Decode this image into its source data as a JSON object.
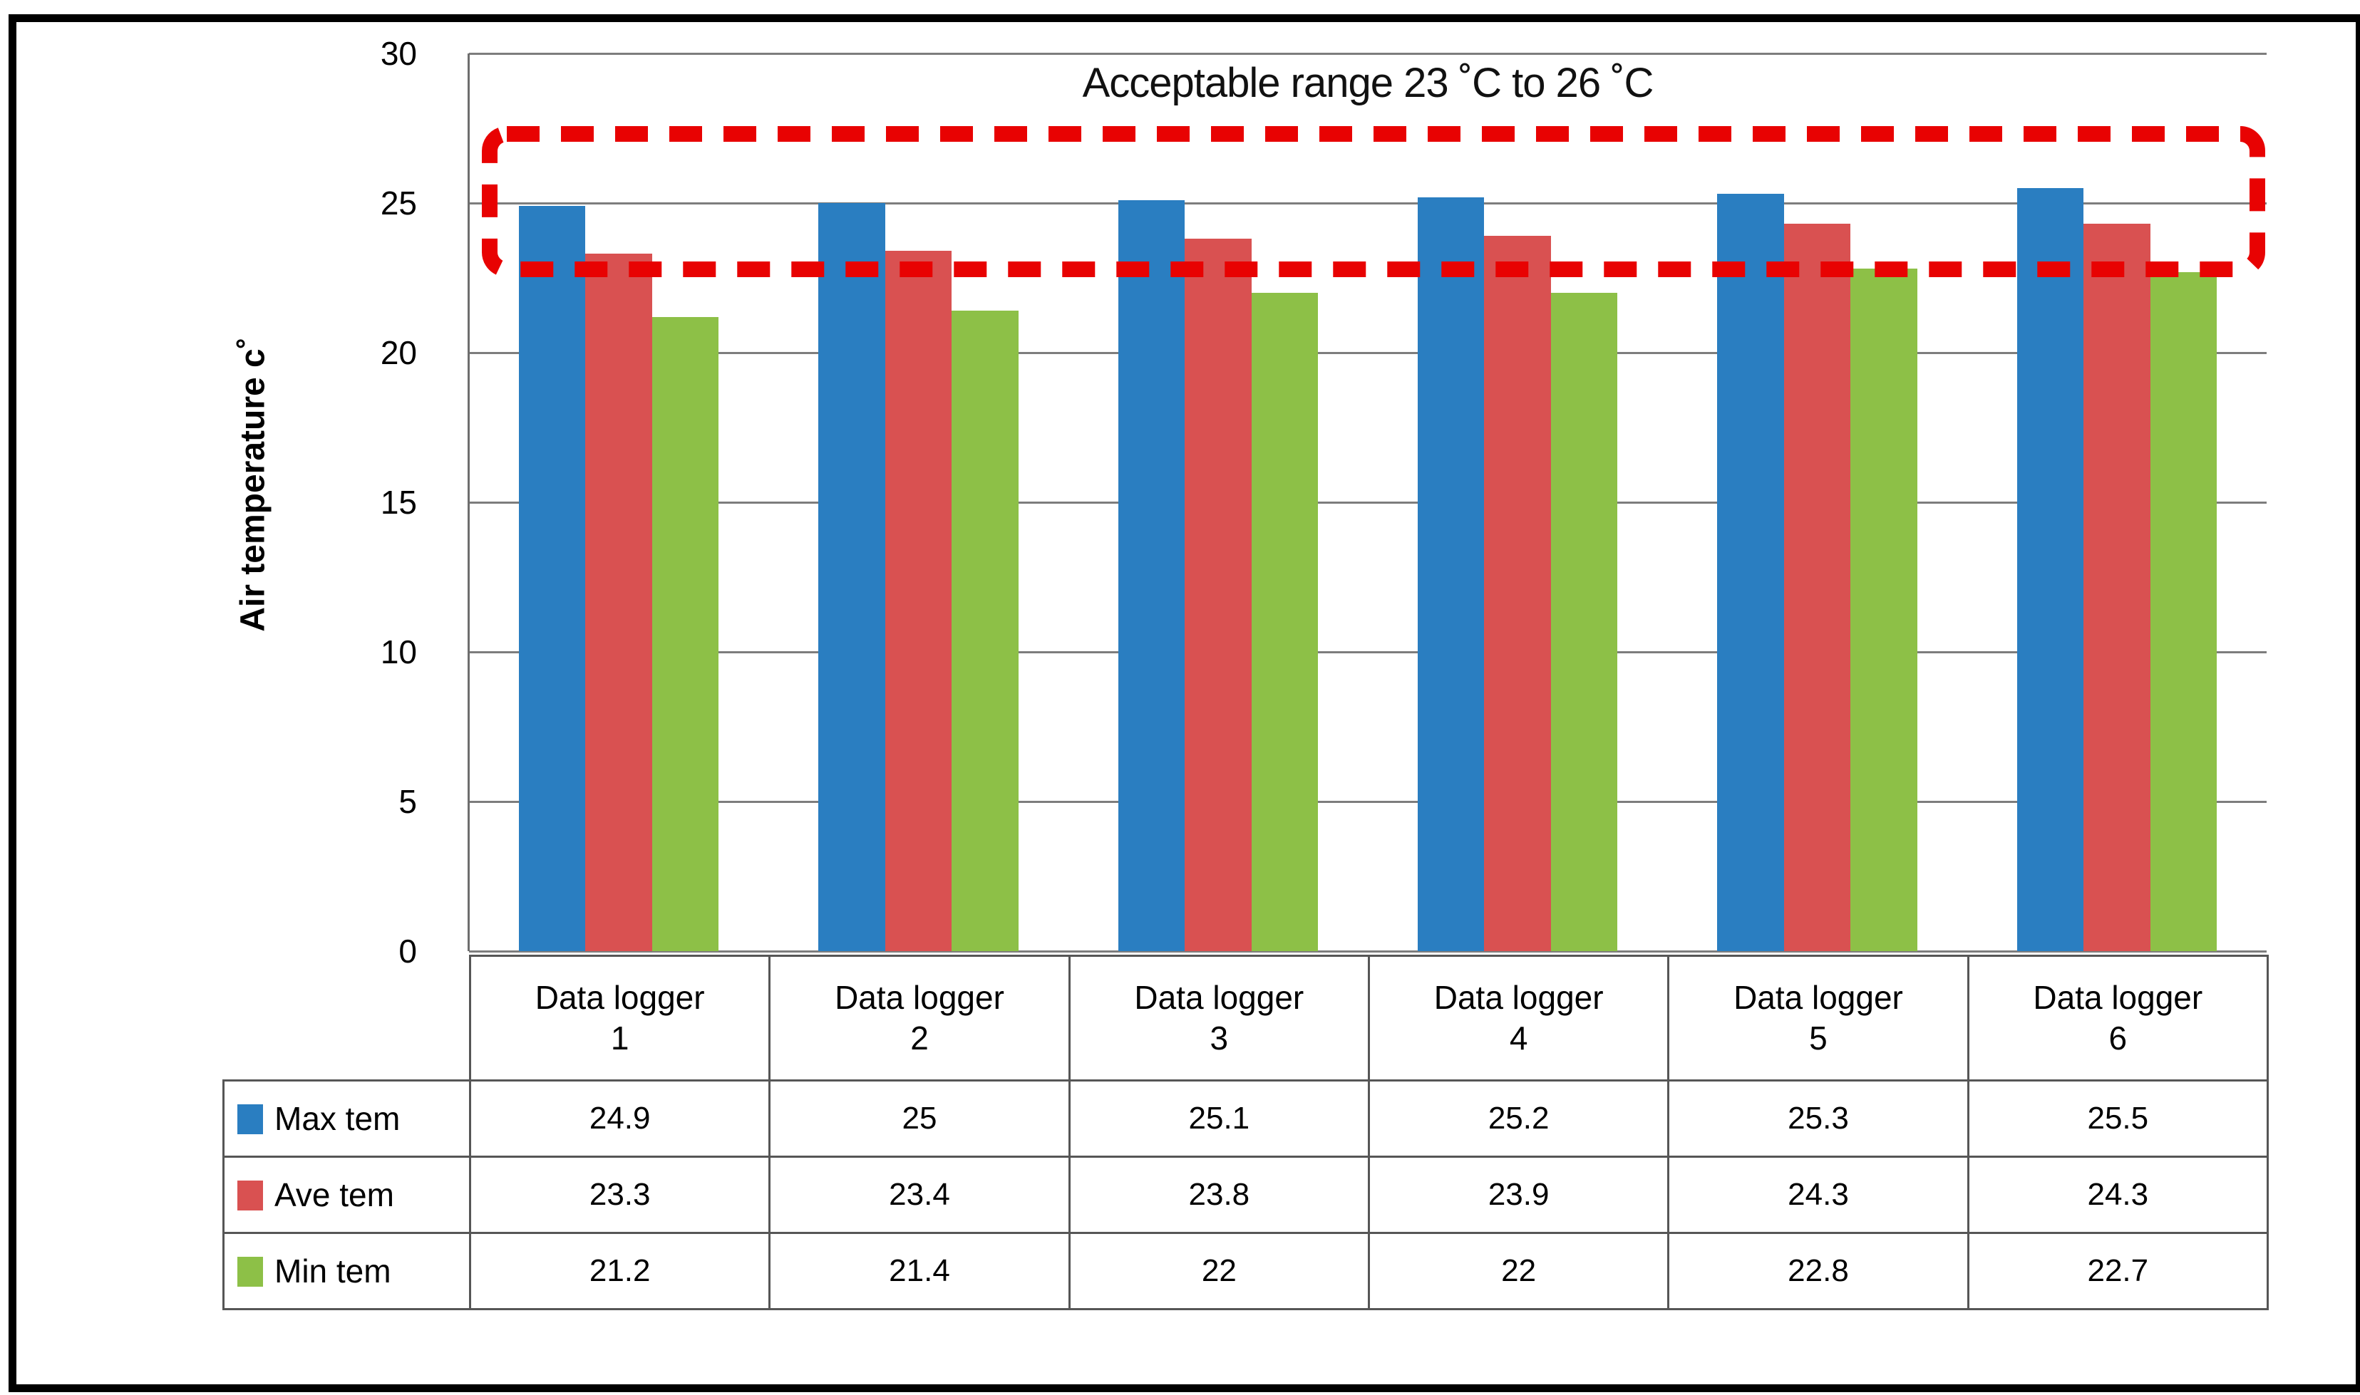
{
  "chart_data": {
    "type": "bar",
    "title": "Acceptable range 23 ˚C to 26 ˚C",
    "ylabel": "Air temperature c˚",
    "categories": [
      "Data logger 1",
      "Data logger 2",
      "Data logger 3",
      "Data logger 4",
      "Data logger 5",
      "Data logger 6"
    ],
    "series": [
      {
        "name": "Max tem",
        "color": "#2A7EC1",
        "values": [
          24.9,
          25,
          25.1,
          25.2,
          25.3,
          25.5
        ]
      },
      {
        "name": "Ave tem",
        "color": "#D95151",
        "values": [
          23.3,
          23.4,
          23.8,
          23.9,
          24.3,
          24.3
        ]
      },
      {
        "name": "Min tem",
        "color": "#8DC047",
        "values": [
          21.2,
          21.4,
          22,
          22,
          22.8,
          22.7
        ]
      }
    ],
    "ylim": [
      0,
      30
    ],
    "yticks": [
      0,
      5,
      10,
      15,
      20,
      25,
      30
    ],
    "grid": true,
    "legend_position": "table-left",
    "annotation": {
      "label": "Acceptable range 23 ˚C to 26 ˚C",
      "range_label_values": [
        23,
        26
      ],
      "box_drawn_value_range": [
        22.85,
        26.95
      ],
      "box_color": "#E80202",
      "box_style": "dashed"
    },
    "gridline_color": "#7d7d7d",
    "table_border_color": "#565656"
  }
}
